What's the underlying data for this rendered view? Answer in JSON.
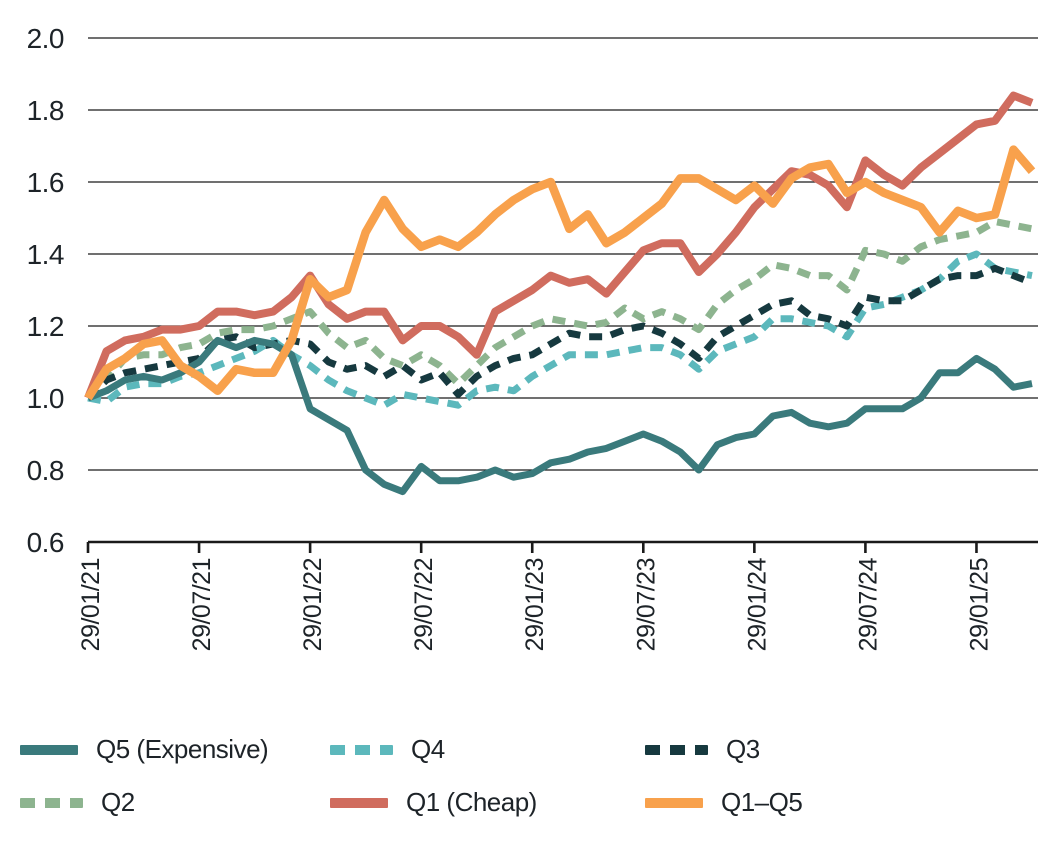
{
  "chart_data": {
    "type": "line",
    "title": "",
    "xlabel": "",
    "ylabel": "",
    "ylim": [
      0.6,
      2.0
    ],
    "y_ticks": [
      0.6,
      0.8,
      1.0,
      1.2,
      1.4,
      1.6,
      1.8,
      2.0
    ],
    "grid": true,
    "legend_position": "bottom",
    "x_tick_indices": [
      0,
      6,
      12,
      18,
      24,
      30,
      36,
      42,
      48
    ],
    "x_tick_labels": [
      "29/01/21",
      "29/07/21",
      "29/01/22",
      "29/07/22",
      "29/01/23",
      "29/07/23",
      "29/01/24",
      "29/07/24",
      "29/01/25"
    ],
    "x_labels": [
      "29/01/21",
      "28/02/21",
      "29/03/21",
      "29/04/21",
      "29/05/21",
      "29/06/21",
      "29/07/21",
      "29/08/21",
      "29/09/21",
      "29/10/21",
      "29/11/21",
      "29/12/21",
      "29/01/22",
      "28/02/22",
      "29/03/22",
      "29/04/22",
      "29/05/22",
      "29/06/22",
      "29/07/22",
      "29/08/22",
      "29/09/22",
      "29/10/22",
      "29/11/22",
      "29/12/22",
      "29/01/23",
      "28/02/23",
      "29/03/23",
      "29/04/23",
      "29/05/23",
      "29/06/23",
      "29/07/23",
      "29/08/23",
      "29/09/23",
      "29/10/23",
      "29/11/23",
      "29/12/23",
      "29/01/24",
      "29/02/24",
      "29/03/24",
      "29/04/24",
      "29/05/24",
      "29/06/24",
      "29/07/24",
      "29/08/24",
      "29/09/24",
      "29/10/24",
      "29/11/24",
      "29/12/24",
      "29/01/25",
      "28/02/25",
      "29/03/25",
      "29/04/25"
    ],
    "axis_color": "#1a1a1a",
    "text_color": "#1d2328",
    "series": [
      {
        "name": "Q5 (Expensive)",
        "color": "#3a7a7c",
        "dashed": false,
        "values": [
          1.0,
          1.02,
          1.05,
          1.06,
          1.05,
          1.07,
          1.1,
          1.16,
          1.14,
          1.16,
          1.15,
          1.12,
          0.97,
          0.94,
          0.91,
          0.8,
          0.76,
          0.74,
          0.81,
          0.77,
          0.77,
          0.78,
          0.8,
          0.78,
          0.79,
          0.82,
          0.83,
          0.85,
          0.86,
          0.88,
          0.9,
          0.88,
          0.85,
          0.8,
          0.87,
          0.89,
          0.9,
          0.95,
          0.96,
          0.93,
          0.92,
          0.93,
          0.97,
          0.97,
          0.97,
          1.0,
          1.07,
          1.07,
          1.11,
          1.08,
          1.03,
          1.04
        ]
      },
      {
        "name": "Q4",
        "color": "#5cb8bc",
        "dashed": true,
        "values": [
          1.0,
          0.99,
          1.03,
          1.04,
          1.04,
          1.06,
          1.07,
          1.09,
          1.11,
          1.13,
          1.16,
          1.12,
          1.09,
          1.05,
          1.02,
          1.0,
          0.98,
          1.01,
          1.0,
          0.99,
          0.98,
          1.02,
          1.03,
          1.02,
          1.06,
          1.09,
          1.12,
          1.12,
          1.12,
          1.13,
          1.14,
          1.14,
          1.12,
          1.08,
          1.13,
          1.15,
          1.17,
          1.22,
          1.22,
          1.21,
          1.2,
          1.17,
          1.25,
          1.26,
          1.28,
          1.3,
          1.33,
          1.38,
          1.4,
          1.36,
          1.35,
          1.34
        ]
      },
      {
        "name": "Q3",
        "color": "#16393f",
        "dashed": true,
        "values": [
          1.0,
          1.05,
          1.07,
          1.08,
          1.09,
          1.1,
          1.11,
          1.16,
          1.17,
          1.14,
          1.15,
          1.16,
          1.15,
          1.1,
          1.08,
          1.09,
          1.06,
          1.09,
          1.05,
          1.07,
          1.01,
          1.06,
          1.09,
          1.11,
          1.12,
          1.15,
          1.18,
          1.17,
          1.17,
          1.19,
          1.2,
          1.18,
          1.15,
          1.11,
          1.17,
          1.2,
          1.23,
          1.26,
          1.27,
          1.23,
          1.22,
          1.2,
          1.28,
          1.27,
          1.27,
          1.3,
          1.33,
          1.34,
          1.34,
          1.36,
          1.34,
          1.32
        ]
      },
      {
        "name": "Q2",
        "color": "#8db48f",
        "dashed": true,
        "values": [
          1.0,
          1.05,
          1.11,
          1.12,
          1.12,
          1.14,
          1.15,
          1.18,
          1.19,
          1.19,
          1.2,
          1.22,
          1.24,
          1.18,
          1.14,
          1.16,
          1.11,
          1.09,
          1.12,
          1.09,
          1.04,
          1.09,
          1.14,
          1.17,
          1.2,
          1.22,
          1.21,
          1.2,
          1.21,
          1.25,
          1.22,
          1.24,
          1.22,
          1.19,
          1.26,
          1.3,
          1.33,
          1.37,
          1.36,
          1.34,
          1.34,
          1.3,
          1.41,
          1.4,
          1.38,
          1.42,
          1.44,
          1.45,
          1.46,
          1.49,
          1.48,
          1.47
        ]
      },
      {
        "name": "Q1 (Cheap)",
        "color": "#d06c5e",
        "dashed": false,
        "values": [
          1.0,
          1.13,
          1.16,
          1.17,
          1.19,
          1.19,
          1.2,
          1.24,
          1.24,
          1.23,
          1.24,
          1.28,
          1.34,
          1.26,
          1.22,
          1.24,
          1.24,
          1.16,
          1.2,
          1.2,
          1.17,
          1.12,
          1.24,
          1.27,
          1.3,
          1.34,
          1.32,
          1.33,
          1.29,
          1.35,
          1.41,
          1.43,
          1.43,
          1.35,
          1.4,
          1.46,
          1.53,
          1.58,
          1.63,
          1.62,
          1.59,
          1.53,
          1.66,
          1.62,
          1.59,
          1.64,
          1.68,
          1.72,
          1.76,
          1.77,
          1.84,
          1.82
        ]
      },
      {
        "name": "Q1–Q5",
        "color": "#f8a14c",
        "dashed": false,
        "values": [
          1.0,
          1.08,
          1.11,
          1.15,
          1.16,
          1.09,
          1.06,
          1.02,
          1.08,
          1.07,
          1.07,
          1.16,
          1.33,
          1.28,
          1.3,
          1.46,
          1.55,
          1.47,
          1.42,
          1.44,
          1.42,
          1.46,
          1.51,
          1.55,
          1.58,
          1.6,
          1.47,
          1.51,
          1.43,
          1.46,
          1.5,
          1.54,
          1.61,
          1.61,
          1.58,
          1.55,
          1.59,
          1.54,
          1.61,
          1.64,
          1.65,
          1.57,
          1.6,
          1.57,
          1.55,
          1.53,
          1.46,
          1.52,
          1.5,
          1.51,
          1.69,
          1.63
        ]
      }
    ]
  }
}
